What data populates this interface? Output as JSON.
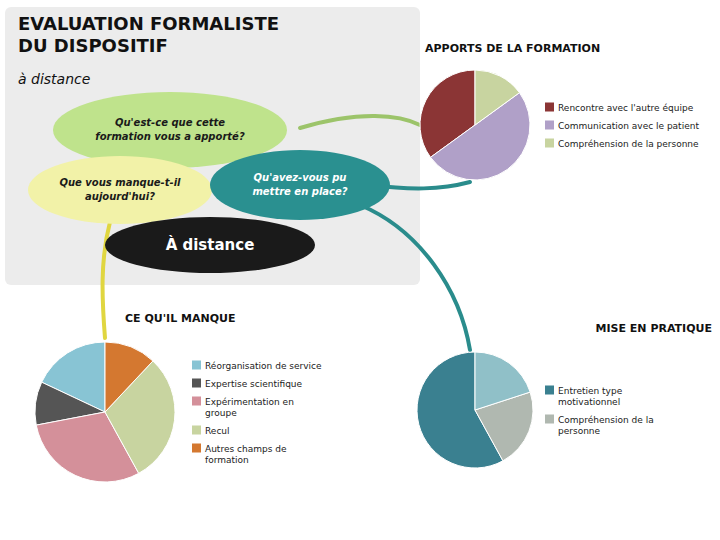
{
  "title": "EVALUATION FORMALISTE\nDU DISPOSITIF",
  "subtitle": "à distance",
  "annotations": [
    "Qu'est-ce que cette\nformation vous a apporté?",
    "Qu'avez-vous pu\nmettre en place?",
    "Que vous manque-t-il\naujourd'hui?",
    "À distance"
  ],
  "chart_data": [
    {
      "type": "pie",
      "title": "APPORTS DE LA FORMATION",
      "categories": [
        "Rencontre avec l'autre équipe",
        "Communication avec le patient",
        "Compréhension de la personne"
      ],
      "values": [
        35,
        50,
        15
      ],
      "colors": [
        "#8b3535",
        "#b0a0c8",
        "#c8d4a0"
      ]
    },
    {
      "type": "pie",
      "title": "CE QU'IL MANQUE",
      "categories": [
        "Réorganisation de service",
        "Expertise scientifique",
        "Expérimentation en\ngroupe",
        "Recul",
        "Autres champs de\nformation"
      ],
      "values": [
        18,
        10,
        30,
        30,
        12
      ],
      "colors": [
        "#88c4d4",
        "#555555",
        "#d4909a",
        "#c8d4a0",
        "#d47830"
      ]
    },
    {
      "type": "pie",
      "title": "MISE EN PRATIQUE",
      "categories": [
        "Entretien type\nmotivationnel",
        "Compréhension de la\npersonne",
        null
      ],
      "values": [
        58,
        22,
        20
      ],
      "colors": [
        "#3a8090",
        "#b0b8b0",
        "#90c0c8"
      ]
    }
  ]
}
